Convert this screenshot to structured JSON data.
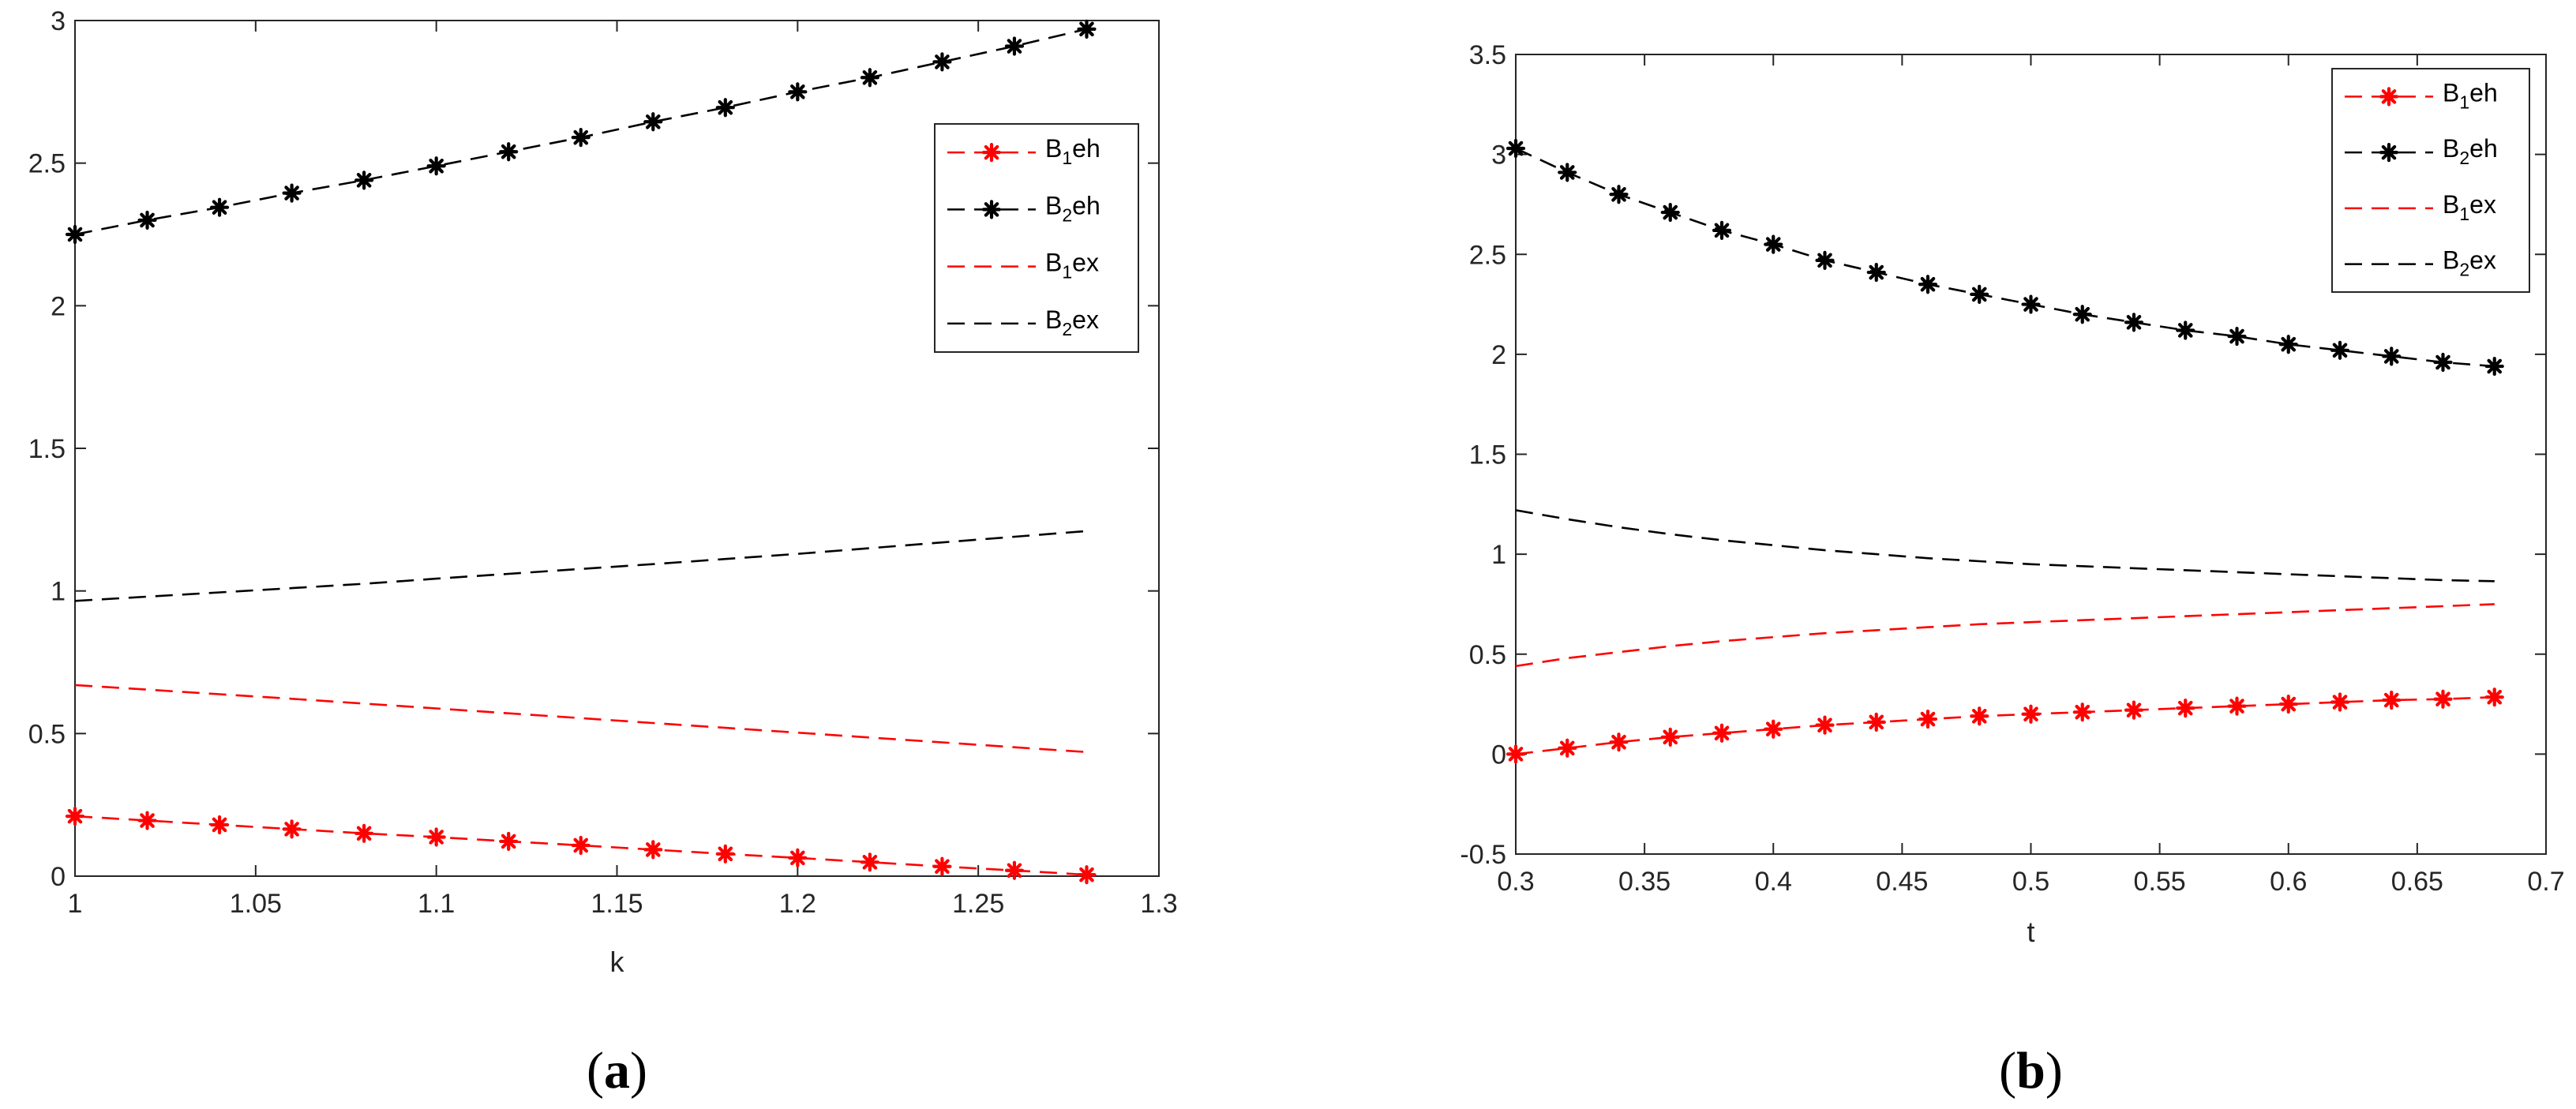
{
  "figure": {
    "colors": {
      "B1": "#ff0000",
      "B2": "#000000",
      "axis": "#262626"
    }
  },
  "chart_data": [
    {
      "type": "line",
      "panel_label": [
        "(",
        "a",
        ")"
      ],
      "xlabel": "k",
      "ylabel": "",
      "xlim": [
        1,
        1.3
      ],
      "ylim": [
        0,
        3
      ],
      "xticks": [
        1,
        1.05,
        1.1,
        1.15,
        1.2,
        1.25,
        1.3
      ],
      "xtick_labels": [
        "1",
        "1.05",
        "1.1",
        "1.15",
        "1.2",
        "1.25",
        "1.3"
      ],
      "yticks": [
        0,
        0.5,
        1,
        1.5,
        2,
        2.5,
        3
      ],
      "ytick_labels": [
        "0",
        "0.5",
        "1",
        "1.5",
        "2",
        "2.5",
        "3"
      ],
      "legend_position": "top-right",
      "x": [
        1,
        1.02,
        1.04,
        1.06,
        1.08,
        1.1,
        1.12,
        1.14,
        1.16,
        1.18,
        1.2,
        1.22,
        1.24,
        1.26,
        1.28
      ],
      "series": [
        {
          "id": "B1eh",
          "name": "B1eh",
          "base": "B",
          "sub": "1",
          "suffix": "eh",
          "color": "#ff0000",
          "marker": "asterisk",
          "values": [
            0.21,
            0.195,
            0.18,
            0.165,
            0.15,
            0.137,
            0.122,
            0.108,
            0.093,
            0.078,
            0.064,
            0.049,
            0.034,
            0.02,
            0.005
          ]
        },
        {
          "id": "B2eh",
          "name": "B2eh",
          "base": "B",
          "sub": "2",
          "suffix": "eh",
          "color": "#000000",
          "marker": "asterisk",
          "values": [
            2.25,
            2.3,
            2.345,
            2.395,
            2.44,
            2.49,
            2.54,
            2.59,
            2.645,
            2.695,
            2.75,
            2.8,
            2.855,
            2.91,
            2.97
          ]
        },
        {
          "id": "B1ex",
          "name": "B1ex",
          "base": "B",
          "sub": "1",
          "suffix": "ex",
          "color": "#ff0000",
          "marker": "none",
          "values": [
            0.67,
            0.654,
            0.638,
            0.622,
            0.605,
            0.588,
            0.571,
            0.554,
            0.537,
            0.52,
            0.503,
            0.486,
            0.469,
            0.452,
            0.435
          ]
        },
        {
          "id": "B2ex",
          "name": "B2ex",
          "base": "B",
          "sub": "2",
          "suffix": "ex",
          "color": "#000000",
          "marker": "none",
          "values": [
            0.965,
            0.98,
            0.995,
            1.01,
            1.025,
            1.043,
            1.06,
            1.077,
            1.094,
            1.112,
            1.13,
            1.15,
            1.17,
            1.19,
            1.21
          ]
        }
      ]
    },
    {
      "type": "line",
      "panel_label": [
        "(",
        "b",
        ")"
      ],
      "xlabel": "t",
      "ylabel": "",
      "xlim": [
        0.3,
        0.7
      ],
      "ylim": [
        -0.5,
        3.5
      ],
      "xticks": [
        0.3,
        0.35,
        0.4,
        0.45,
        0.5,
        0.55,
        0.6,
        0.65,
        0.7
      ],
      "xtick_labels": [
        "0.3",
        "0.35",
        "0.4",
        "0.45",
        "0.5",
        "0.55",
        "0.6",
        "0.65",
        "0.7"
      ],
      "yticks": [
        -0.5,
        0,
        0.5,
        1,
        1.5,
        2,
        2.5,
        3,
        3.5
      ],
      "ytick_labels": [
        "-0.5",
        "0",
        "0.5",
        "1",
        "1.5",
        "2",
        "2.5",
        "3",
        "3.5"
      ],
      "legend_position": "top-right",
      "x": [
        0.3,
        0.32,
        0.34,
        0.36,
        0.38,
        0.4,
        0.42,
        0.44,
        0.46,
        0.48,
        0.5,
        0.52,
        0.54,
        0.56,
        0.58,
        0.6,
        0.62,
        0.64,
        0.66,
        0.68
      ],
      "series": [
        {
          "id": "B1eh",
          "name": "B1eh",
          "base": "B",
          "sub": "1",
          "suffix": "eh",
          "color": "#ff0000",
          "marker": "asterisk",
          "values": [
            0.0,
            0.03,
            0.06,
            0.085,
            0.105,
            0.125,
            0.145,
            0.16,
            0.175,
            0.19,
            0.2,
            0.21,
            0.22,
            0.23,
            0.24,
            0.25,
            0.26,
            0.27,
            0.275,
            0.285
          ]
        },
        {
          "id": "B2eh",
          "name": "B2eh",
          "base": "B",
          "sub": "2",
          "suffix": "eh",
          "color": "#000000",
          "marker": "asterisk",
          "values": [
            3.03,
            2.91,
            2.8,
            2.71,
            2.62,
            2.55,
            2.47,
            2.41,
            2.35,
            2.3,
            2.25,
            2.2,
            2.16,
            2.12,
            2.09,
            2.05,
            2.02,
            1.99,
            1.96,
            1.94
          ]
        },
        {
          "id": "B1ex",
          "name": "B1ex",
          "base": "B",
          "sub": "1",
          "suffix": "ex",
          "color": "#ff0000",
          "marker": "none",
          "values": [
            0.44,
            0.48,
            0.51,
            0.54,
            0.565,
            0.585,
            0.605,
            0.62,
            0.635,
            0.65,
            0.66,
            0.67,
            0.68,
            0.69,
            0.7,
            0.71,
            0.72,
            0.73,
            0.74,
            0.75
          ]
        },
        {
          "id": "B2ex",
          "name": "B2ex",
          "base": "B",
          "sub": "2",
          "suffix": "ex",
          "color": "#000000",
          "marker": "none",
          "values": [
            1.22,
            1.175,
            1.135,
            1.1,
            1.07,
            1.045,
            1.02,
            1.0,
            0.98,
            0.965,
            0.95,
            0.94,
            0.93,
            0.92,
            0.91,
            0.9,
            0.89,
            0.88,
            0.87,
            0.865
          ]
        }
      ]
    }
  ]
}
